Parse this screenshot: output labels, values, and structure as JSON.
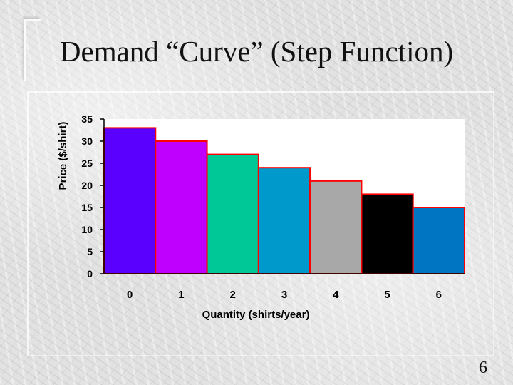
{
  "slide": {
    "title": "Demand “Curve” (Step Function)",
    "page_number": "6"
  },
  "chart_data": {
    "type": "bar",
    "categories": [
      "0",
      "1",
      "2",
      "3",
      "4",
      "5",
      "6"
    ],
    "values": [
      33,
      30,
      27,
      24,
      21,
      18,
      15
    ],
    "xlabel": "Quantity (shirts/year)",
    "ylabel": "Price ($/shirt)",
    "ylim": [
      0,
      35
    ],
    "yticks": [
      0,
      5,
      10,
      15,
      20,
      25,
      30,
      35
    ],
    "grid": false,
    "legend": "none",
    "bar_colors": [
      "#5a00ff",
      "#c000ff",
      "#00c896",
      "#0099cc",
      "#a8a8a8",
      "#000000",
      "#0075c2"
    ],
    "bar_outline_color": "#ff0000",
    "plot_background": "#ffffff"
  }
}
